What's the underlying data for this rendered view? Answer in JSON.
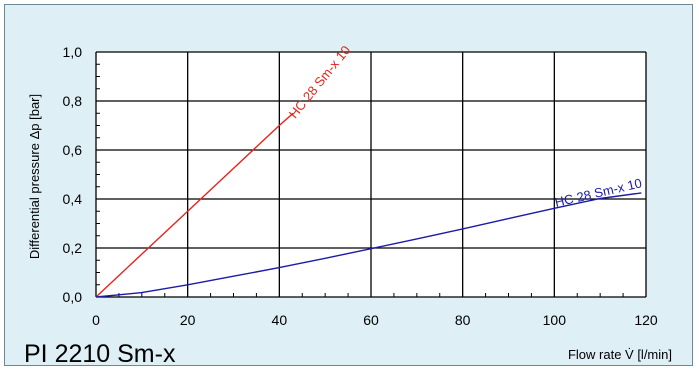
{
  "title": "PI 2210 Sm-x",
  "chart_data": {
    "type": "line",
    "xlabel": "Flow rate V̇ [l/min]",
    "ylabel": "Differential pressure Δp [bar]",
    "xlim": [
      0,
      120
    ],
    "ylim": [
      0,
      1.0
    ],
    "x_ticks": [
      "0",
      "20",
      "40",
      "60",
      "80",
      "100",
      "120"
    ],
    "y_ticks": [
      "0,0",
      "0,2",
      "0,4",
      "0,6",
      "0,8",
      "1,0"
    ],
    "grid": true,
    "series": [
      {
        "name": "HC 28 Sm-x 10",
        "color": "#e8231c",
        "x": [
          0,
          10,
          20,
          30,
          40,
          43
        ],
        "y": [
          0,
          0.175,
          0.35,
          0.525,
          0.7,
          0.75
        ]
      },
      {
        "name": "HC 28 Sm-x 10",
        "color": "#1c1ca8",
        "x": [
          0,
          10,
          20,
          30,
          40,
          50,
          60,
          70,
          80,
          90,
          100,
          110,
          119
        ],
        "y": [
          0,
          0.018,
          0.05,
          0.085,
          0.12,
          0.158,
          0.197,
          0.237,
          0.278,
          0.32,
          0.362,
          0.402,
          0.425
        ]
      }
    ]
  }
}
